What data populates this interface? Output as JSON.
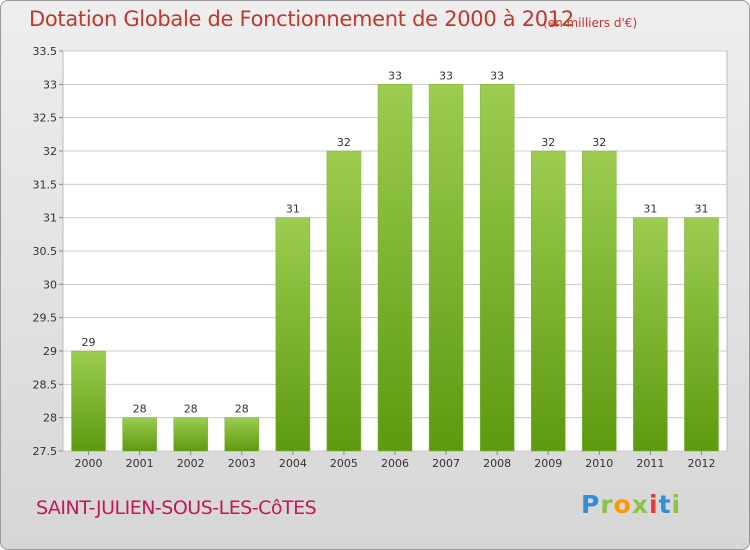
{
  "header": {
    "title": "Dotation Globale de Fonctionnement de 2000 à 2012",
    "subtitle": "(en milliers d'€)"
  },
  "footer": {
    "commune": "SAINT-JULIEN-SOUS-LES-CôTES",
    "logo_letters": [
      "P",
      "r",
      "o",
      "x",
      "i",
      "t",
      "i"
    ]
  },
  "colors": {
    "title": "#c0392b",
    "commune": "#c2185b",
    "bar_top": "#9ccc50",
    "bar_bottom": "#5d9a0f",
    "grid": "#cccccc"
  },
  "chart_data": {
    "type": "bar",
    "title": "Dotation Globale de Fonctionnement de 2000 à 2012",
    "subtitle": "(en milliers d'€)",
    "xlabel": "",
    "ylabel": "",
    "categories": [
      "2000",
      "2001",
      "2002",
      "2003",
      "2004",
      "2005",
      "2006",
      "2007",
      "2008",
      "2009",
      "2010",
      "2011",
      "2012"
    ],
    "values": [
      29,
      28,
      28,
      28,
      31,
      32,
      33,
      33,
      33,
      32,
      32,
      31,
      31
    ],
    "data_labels": [
      "29",
      "28",
      "28",
      "28",
      "31",
      "32",
      "33",
      "33",
      "33",
      "32",
      "32",
      "31",
      "31"
    ],
    "ylim": [
      27.5,
      33.5
    ],
    "yticks": [
      27.5,
      28,
      28.5,
      29,
      29.5,
      30,
      30.5,
      31,
      31.5,
      32,
      32.5,
      33,
      33.5
    ],
    "ytick_labels": [
      "27.5",
      "28",
      "28.5",
      "29",
      "29.5",
      "30",
      "30.5",
      "31",
      "31.5",
      "32",
      "32.5",
      "33",
      "33.5"
    ],
    "grid": true,
    "legend": "none"
  }
}
